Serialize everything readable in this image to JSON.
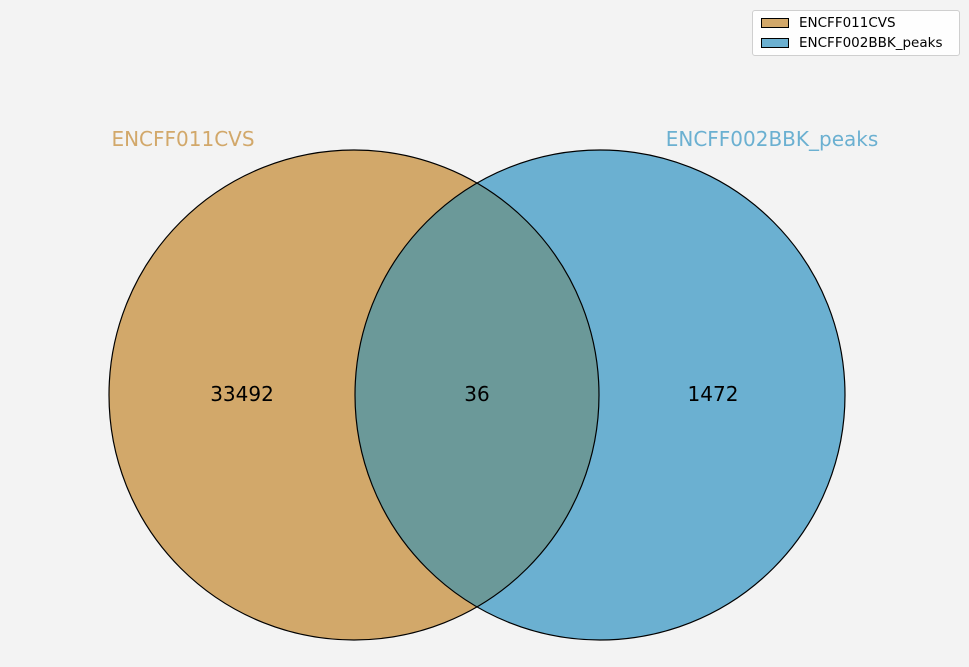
{
  "sets": [
    {
      "name": "ENCFF011CVS",
      "only_count": "33492",
      "fill": "#d2a86a",
      "label_color": "#d2a86a"
    },
    {
      "name": "ENCFF002BBK_peaks",
      "only_count": "1472",
      "fill": "#6bb0d1",
      "label_color": "#6bb0d1"
    }
  ],
  "intersection": {
    "count": "36",
    "fill": "#6b9999"
  },
  "legend": {
    "entries": [
      {
        "label": "ENCFF011CVS",
        "color": "#d2a86a"
      },
      {
        "label": "ENCFF002BBK_peaks",
        "color": "#6bb0d1"
      }
    ]
  }
}
